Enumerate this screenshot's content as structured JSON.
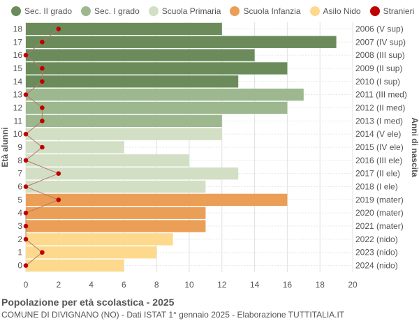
{
  "chart_data": {
    "type": "bar",
    "orientation": "horizontal",
    "ylabel_left": "Età alunni",
    "ylabel_right": "Anni di nascita",
    "xlim": [
      0,
      20
    ],
    "xticks": [
      "0",
      "2",
      "4",
      "6",
      "8",
      "10",
      "12",
      "14",
      "16",
      "18",
      "20"
    ],
    "grid": true,
    "legend_position": "top",
    "ages": [
      "18",
      "17",
      "16",
      "15",
      "14",
      "13",
      "12",
      "11",
      "10",
      "9",
      "8",
      "7",
      "6",
      "5",
      "4",
      "3",
      "2",
      "1",
      "0"
    ],
    "birth_years": [
      "2006 (V sup)",
      "2007 (IV sup)",
      "2008 (III sup)",
      "2009 (II sup)",
      "2010 (I sup)",
      "2011 (III med)",
      "2012 (II med)",
      "2013 (I med)",
      "2014 (V ele)",
      "2015 (IV ele)",
      "2016 (III ele)",
      "2017 (II ele)",
      "2018 (I ele)",
      "2019 (mater)",
      "2020 (mater)",
      "2021 (mater)",
      "2022 (nido)",
      "2023 (nido)",
      "2024 (nido)"
    ],
    "values": [
      12,
      19,
      14,
      16,
      13,
      17,
      16,
      12,
      12,
      6,
      10,
      13,
      11,
      16,
      11,
      11,
      9,
      8,
      6
    ],
    "level": [
      "sec2",
      "sec2",
      "sec2",
      "sec2",
      "sec2",
      "sec1",
      "sec1",
      "sec1",
      "prim",
      "prim",
      "prim",
      "prim",
      "prim",
      "inf",
      "inf",
      "inf",
      "nido",
      "nido",
      "nido"
    ],
    "stranieri": [
      2,
      1,
      0,
      1,
      1,
      0,
      1,
      1,
      0,
      1,
      0,
      2,
      0,
      2,
      0,
      0,
      0,
      1,
      0
    ],
    "series": [
      {
        "key": "sec2",
        "name": "Sec. II grado",
        "color": "#6b8c5a"
      },
      {
        "key": "sec1",
        "name": "Sec. I grado",
        "color": "#9db88e"
      },
      {
        "key": "prim",
        "name": "Scuola Primaria",
        "color": "#d3dfc4"
      },
      {
        "key": "inf",
        "name": "Scuola Infanzia",
        "color": "#eb9e55"
      },
      {
        "key": "nido",
        "name": "Asilo Nido",
        "color": "#fdd98e"
      },
      {
        "key": "stranieri",
        "name": "Stranieri",
        "color": "#c00000"
      }
    ]
  },
  "footer": {
    "title": "Popolazione per età scolastica - 2025",
    "subtitle": "COMUNE DI DIVIGNANO (NO) - Dati ISTAT 1° gennaio 2025 - Elaborazione TUTTITALIA.IT"
  }
}
